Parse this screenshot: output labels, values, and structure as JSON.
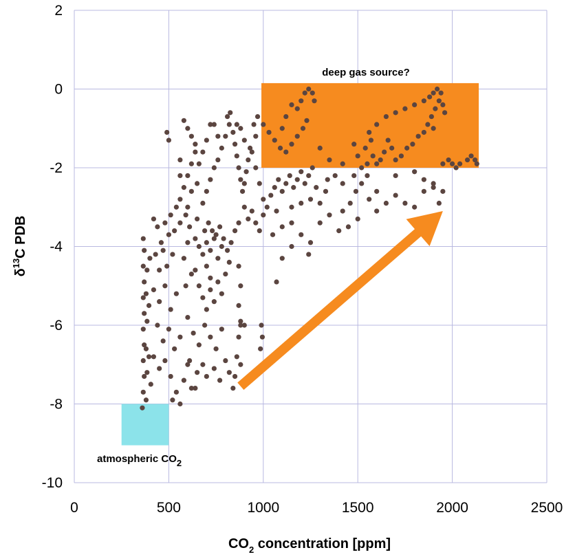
{
  "chart_data": {
    "type": "scatter",
    "xlabel_main": "CO",
    "xlabel_sub": "2",
    "xlabel_rest": " concentration [ppm]",
    "ylabel_prefix": "δ",
    "ylabel_sup": "13",
    "ylabel_rest": "C PDB",
    "xlim": [
      0,
      2500
    ],
    "ylim": [
      -10,
      2
    ],
    "xticks": [
      "0",
      "500",
      "1000",
      "1500",
      "2000",
      "2500"
    ],
    "yticks": [
      "2",
      "0",
      "-2",
      "-4",
      "-6",
      "-8",
      "-10"
    ],
    "grid": true,
    "colors": {
      "points": "#5b4540",
      "deep_box": "#f68b1f",
      "atm_box": "#8ce3ea",
      "arrow": "#f68b1f",
      "grid": "#b8b8e0"
    },
    "regions": [
      {
        "name": "deep gas source?",
        "x": [
          990,
          2140
        ],
        "y": [
          -2,
          0.15
        ]
      },
      {
        "name": "atmospheric CO2",
        "x": [
          250,
          500
        ],
        "y": [
          -9.05,
          -8
        ]
      }
    ],
    "annotations": {
      "deep_label": "deep gas source?",
      "atm_label_main": "atmospheric CO",
      "atm_label_sub": "2"
    },
    "arrow": {
      "from": [
        880,
        -7.55
      ],
      "to": [
        1950,
        -3.1
      ]
    },
    "points": [
      [
        360,
        -8.1
      ],
      [
        365,
        -7.7
      ],
      [
        370,
        -7.3
      ],
      [
        365,
        -6.9
      ],
      [
        370,
        -6.5
      ],
      [
        365,
        -6.1
      ],
      [
        370,
        -5.7
      ],
      [
        365,
        -5.3
      ],
      [
        370,
        -4.9
      ],
      [
        365,
        -4.5
      ],
      [
        370,
        -4.1
      ],
      [
        365,
        -3.8
      ],
      [
        380,
        -7.9
      ],
      [
        385,
        -7.2
      ],
      [
        380,
        -6.6
      ],
      [
        385,
        -5.9
      ],
      [
        380,
        -5.2
      ],
      [
        385,
        -4.6
      ],
      [
        395,
        -6.8
      ],
      [
        395,
        -5.5
      ],
      [
        400,
        -4.3
      ],
      [
        405,
        -7.5
      ],
      [
        420,
        -3.3
      ],
      [
        440,
        -3.5
      ],
      [
        460,
        -3.9
      ],
      [
        480,
        -3.4
      ],
      [
        500,
        -3.7
      ],
      [
        430,
        -4.2
      ],
      [
        450,
        -4.6
      ],
      [
        470,
        -4.1
      ],
      [
        490,
        -4.5
      ],
      [
        520,
        -4.2
      ],
      [
        420,
        -5.1
      ],
      [
        450,
        -5.4
      ],
      [
        480,
        -5.0
      ],
      [
        510,
        -5.6
      ],
      [
        540,
        -5.2
      ],
      [
        440,
        -6.0
      ],
      [
        470,
        -6.4
      ],
      [
        500,
        -6.1
      ],
      [
        530,
        -6.6
      ],
      [
        560,
        -6.3
      ],
      [
        420,
        -6.8
      ],
      [
        450,
        -7.1
      ],
      [
        480,
        -6.9
      ],
      [
        510,
        -7.3
      ],
      [
        540,
        -7.7
      ],
      [
        560,
        -8.0
      ],
      [
        520,
        -7.9
      ],
      [
        580,
        -7.4
      ],
      [
        600,
        -7.0
      ],
      [
        620,
        -7.6
      ],
      [
        540,
        -3.0
      ],
      [
        560,
        -2.8
      ],
      [
        580,
        -2.5
      ],
      [
        600,
        -2.2
      ],
      [
        620,
        -1.9
      ],
      [
        640,
        -1.6
      ],
      [
        560,
        -2.2
      ],
      [
        590,
        -3.2
      ],
      [
        610,
        -3.5
      ],
      [
        640,
        -3.8
      ],
      [
        660,
        -4.0
      ],
      [
        680,
        -4.2
      ],
      [
        700,
        -3.9
      ],
      [
        720,
        -4.1
      ],
      [
        740,
        -3.8
      ],
      [
        760,
        -4.3
      ],
      [
        780,
        -4.0
      ],
      [
        700,
        -4.5
      ],
      [
        720,
        -4.8
      ],
      [
        690,
        -3.6
      ],
      [
        710,
        -3.4
      ],
      [
        730,
        -3.6
      ],
      [
        750,
        -3.7
      ],
      [
        770,
        -3.5
      ],
      [
        790,
        -3.8
      ],
      [
        810,
        -4.1
      ],
      [
        830,
        -3.9
      ],
      [
        850,
        -3.6
      ],
      [
        870,
        -3.4
      ],
      [
        640,
        -4.6
      ],
      [
        660,
        -5.0
      ],
      [
        680,
        -5.3
      ],
      [
        700,
        -5.6
      ],
      [
        720,
        -5.1
      ],
      [
        740,
        -5.4
      ],
      [
        760,
        -4.9
      ],
      [
        780,
        -5.2
      ],
      [
        800,
        -4.7
      ],
      [
        820,
        -4.4
      ],
      [
        600,
        -5.8
      ],
      [
        630,
        -6.2
      ],
      [
        660,
        -6.5
      ],
      [
        690,
        -6.0
      ],
      [
        720,
        -6.3
      ],
      [
        750,
        -6.6
      ],
      [
        780,
        -6.1
      ],
      [
        610,
        -6.9
      ],
      [
        650,
        -7.2
      ],
      [
        680,
        -7.0
      ],
      [
        700,
        -7.3
      ],
      [
        740,
        -7.1
      ],
      [
        770,
        -7.4
      ],
      [
        800,
        -6.9
      ],
      [
        640,
        -7.6
      ],
      [
        590,
        -5.0
      ],
      [
        620,
        -4.7
      ],
      [
        580,
        -4.3
      ],
      [
        600,
        -3.9
      ],
      [
        650,
        -3.3
      ],
      [
        680,
        -2.9
      ],
      [
        700,
        -2.6
      ],
      [
        720,
        -2.3
      ],
      [
        740,
        -2.0
      ],
      [
        760,
        -1.8
      ],
      [
        780,
        -1.5
      ],
      [
        800,
        -1.2
      ],
      [
        820,
        -0.9
      ],
      [
        825,
        -0.6
      ],
      [
        810,
        -0.7
      ],
      [
        840,
        -1.1
      ],
      [
        850,
        -1.4
      ],
      [
        860,
        -1.7
      ],
      [
        870,
        -2.0
      ],
      [
        880,
        -2.3
      ],
      [
        890,
        -2.6
      ],
      [
        900,
        -2.4
      ],
      [
        910,
        -2.1
      ],
      [
        920,
        -1.8
      ],
      [
        930,
        -1.5
      ],
      [
        760,
        -1.2
      ],
      [
        740,
        -0.9
      ],
      [
        720,
        -0.9
      ],
      [
        700,
        -1.3
      ],
      [
        680,
        -1.6
      ],
      [
        660,
        -1.9
      ],
      [
        640,
        -1.4
      ],
      [
        620,
        -1.2
      ],
      [
        600,
        -1.0
      ],
      [
        580,
        -0.8
      ],
      [
        490,
        -1.1
      ],
      [
        500,
        -1.3
      ],
      [
        560,
        -1.8
      ],
      [
        620,
        -2.6
      ],
      [
        650,
        -2.4
      ],
      [
        600,
        -3.0
      ],
      [
        560,
        -3.4
      ],
      [
        530,
        -3.6
      ],
      [
        510,
        -3.2
      ],
      [
        860,
        -0.9
      ],
      [
        880,
        -1.0
      ],
      [
        900,
        -1.3
      ],
      [
        950,
        -0.9
      ],
      [
        970,
        -0.7
      ],
      [
        960,
        -1.2
      ],
      [
        940,
        -1.6
      ],
      [
        960,
        -2.0
      ],
      [
        980,
        -2.4
      ],
      [
        1000,
        -2.8
      ],
      [
        900,
        -3.0
      ],
      [
        920,
        -3.3
      ],
      [
        940,
        -3.1
      ],
      [
        960,
        -3.4
      ],
      [
        980,
        -3.6
      ],
      [
        1000,
        -3.2
      ],
      [
        1020,
        -3.0
      ],
      [
        1040,
        -2.7
      ],
      [
        1060,
        -2.5
      ],
      [
        1080,
        -2.3
      ],
      [
        1100,
        -2.6
      ],
      [
        1120,
        -2.4
      ],
      [
        1140,
        -2.2
      ],
      [
        1160,
        -2.5
      ],
      [
        1180,
        -2.3
      ],
      [
        1200,
        -2.1
      ],
      [
        1220,
        -2.4
      ],
      [
        1240,
        -2.2
      ],
      [
        1260,
        -2.0
      ],
      [
        870,
        -4.5
      ],
      [
        880,
        -5.0
      ],
      [
        870,
        -5.5
      ],
      [
        880,
        -6.0
      ],
      [
        870,
        -6.3
      ],
      [
        860,
        -6.8
      ],
      [
        880,
        -7.0
      ],
      [
        850,
        -7.3
      ],
      [
        840,
        -7.6
      ],
      [
        820,
        -7.2
      ],
      [
        880,
        -5.9
      ],
      [
        900,
        -6.0
      ],
      [
        990,
        -6.0
      ],
      [
        995,
        -6.3
      ],
      [
        985,
        -6.6
      ],
      [
        1050,
        -3.7
      ],
      [
        1100,
        -3.5
      ],
      [
        1150,
        -3.4
      ],
      [
        1200,
        -3.7
      ],
      [
        1250,
        -3.9
      ],
      [
        1100,
        -4.3
      ],
      [
        1150,
        -4.0
      ],
      [
        1070,
        -4.9
      ],
      [
        1240,
        -4.2
      ],
      [
        1300,
        -3.4
      ],
      [
        1350,
        -3.2
      ],
      [
        1400,
        -3.6
      ],
      [
        1450,
        -3.5
      ],
      [
        1500,
        -3.3
      ],
      [
        1420,
        -3.1
      ],
      [
        1460,
        -2.9
      ],
      [
        1490,
        -2.6
      ],
      [
        1520,
        -2.4
      ],
      [
        1550,
        -2.2
      ],
      [
        1600,
        -3.1
      ],
      [
        1650,
        -2.9
      ],
      [
        1700,
        -2.7
      ],
      [
        1750,
        -2.9
      ],
      [
        1800,
        -3.0
      ],
      [
        1850,
        -2.6
      ],
      [
        1900,
        -2.4
      ],
      [
        1930,
        -2.9
      ],
      [
        1950,
        -2.6
      ],
      [
        1600,
        -2.6
      ],
      [
        1560,
        -2.8
      ],
      [
        1000,
        -0.9
      ],
      [
        1030,
        -1.1
      ],
      [
        1060,
        -1.3
      ],
      [
        1090,
        -1.5
      ],
      [
        1120,
        -1.6
      ],
      [
        1150,
        -1.4
      ],
      [
        1180,
        -1.2
      ],
      [
        1210,
        -1.0
      ],
      [
        1230,
        -0.8
      ],
      [
        1180,
        -0.5
      ],
      [
        1200,
        -0.3
      ],
      [
        1220,
        -0.1
      ],
      [
        1240,
        0.0
      ],
      [
        1260,
        -0.1
      ],
      [
        1270,
        -0.3
      ],
      [
        1150,
        -0.4
      ],
      [
        1120,
        -0.7
      ],
      [
        1100,
        -1.0
      ],
      [
        1300,
        -1.5
      ],
      [
        1350,
        -1.8
      ],
      [
        1420,
        -1.9
      ],
      [
        1480,
        -1.4
      ],
      [
        1500,
        -1.7
      ],
      [
        1560,
        -1.1
      ],
      [
        1600,
        -0.9
      ],
      [
        1650,
        -0.7
      ],
      [
        1700,
        -0.6
      ],
      [
        1750,
        -0.5
      ],
      [
        1800,
        -0.4
      ],
      [
        1850,
        -0.3
      ],
      [
        1880,
        -0.2
      ],
      [
        1900,
        -0.1
      ],
      [
        1920,
        0.0
      ],
      [
        1940,
        -0.1
      ],
      [
        1930,
        -0.3
      ],
      [
        1910,
        -0.5
      ],
      [
        1890,
        -0.7
      ],
      [
        1870,
        -0.9
      ],
      [
        1850,
        -1.1
      ],
      [
        1820,
        -1.2
      ],
      [
        1790,
        -1.4
      ],
      [
        1760,
        -1.5
      ],
      [
        1730,
        -1.7
      ],
      [
        1700,
        -1.8
      ],
      [
        1680,
        -1.5
      ],
      [
        1660,
        -1.3
      ],
      [
        1640,
        -1.6
      ],
      [
        1620,
        -1.8
      ],
      [
        1600,
        -1.9
      ],
      [
        1580,
        -1.7
      ],
      [
        1550,
        -1.9
      ],
      [
        1520,
        -2.0
      ],
      [
        1540,
        -1.5
      ],
      [
        1570,
        -1.3
      ],
      [
        1900,
        -1.0
      ],
      [
        1950,
        -0.4
      ],
      [
        1960,
        -0.6
      ],
      [
        2000,
        -1.9
      ],
      [
        2040,
        -1.9
      ],
      [
        2080,
        -1.8
      ],
      [
        2100,
        -1.7
      ],
      [
        2120,
        -1.8
      ],
      [
        2130,
        -1.9
      ],
      [
        1950,
        -1.9
      ],
      [
        1980,
        -1.8
      ],
      [
        2020,
        -2.0
      ],
      [
        1800,
        -2.1
      ],
      [
        1700,
        -2.2
      ],
      [
        1850,
        -2.3
      ],
      [
        1900,
        -2.5
      ],
      [
        1480,
        -2.2
      ],
      [
        1380,
        -2.2
      ],
      [
        1420,
        -2.4
      ],
      [
        1340,
        -2.3
      ],
      [
        1280,
        -2.5
      ],
      [
        1330,
        -2.6
      ],
      [
        1200,
        -2.9
      ],
      [
        1250,
        -2.8
      ],
      [
        1300,
        -2.9
      ],
      [
        1150,
        -3.0
      ],
      [
        1070,
        -3.1
      ]
    ]
  }
}
